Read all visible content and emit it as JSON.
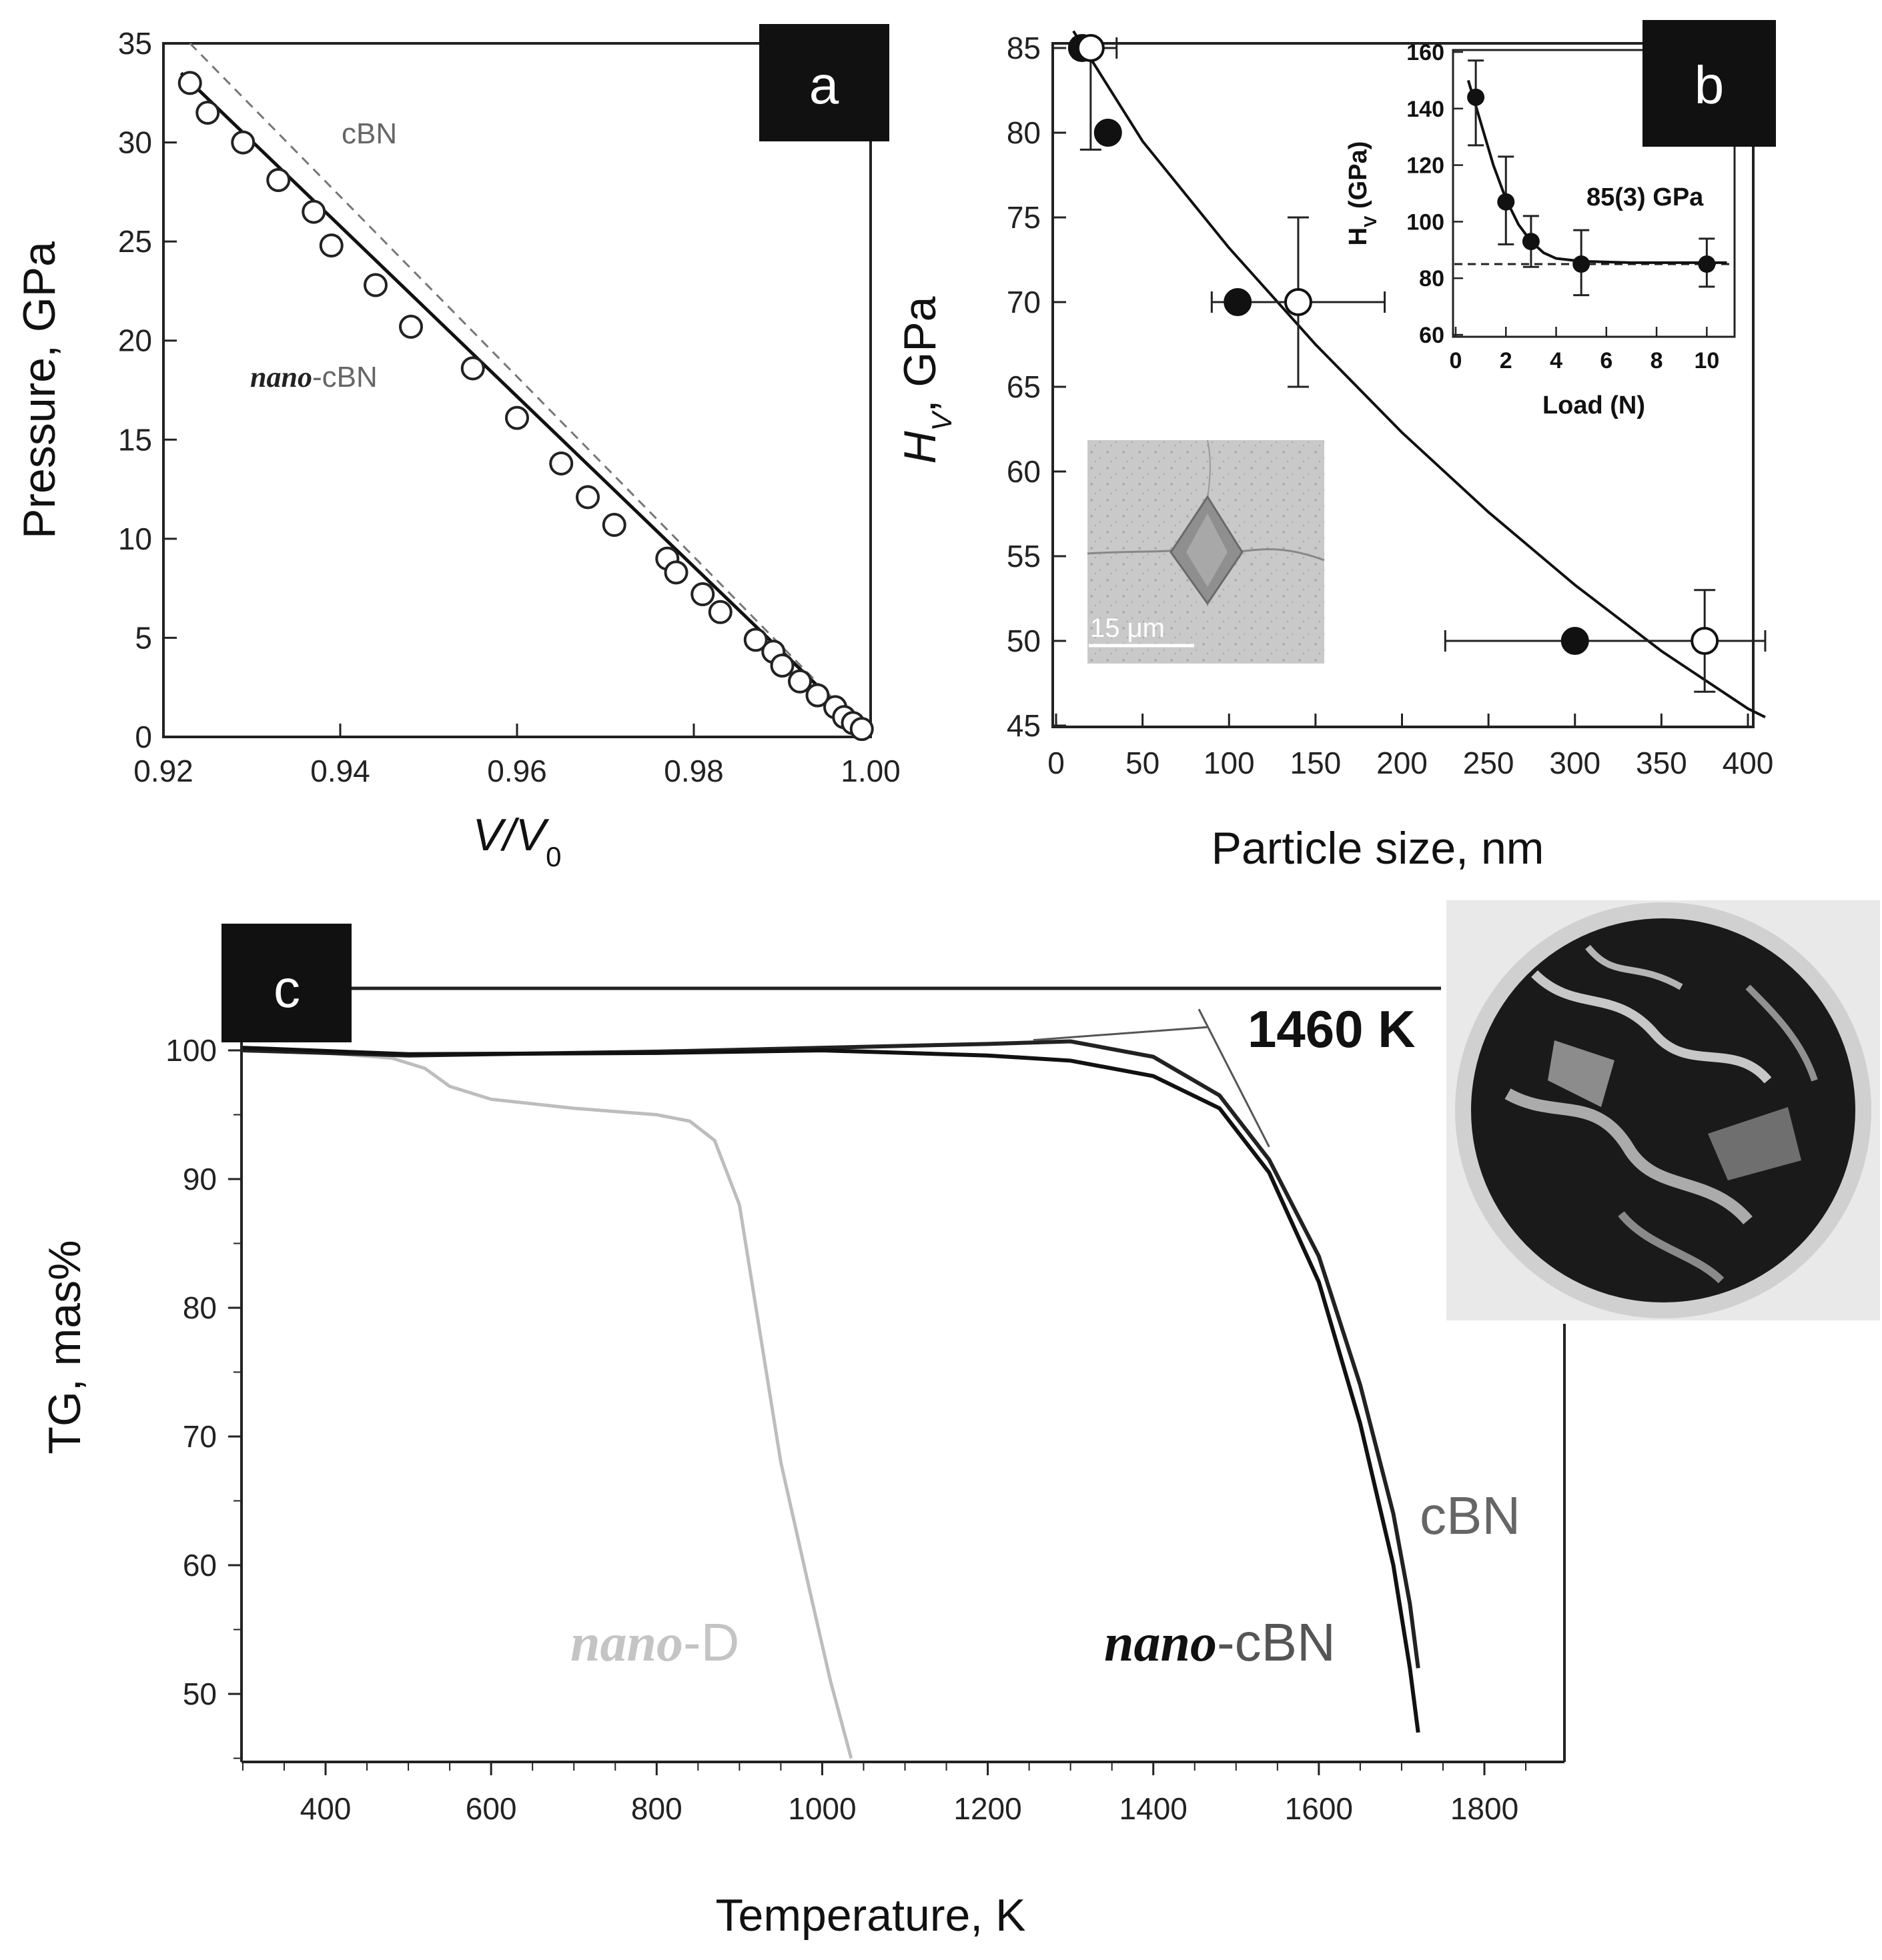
{
  "panels": {
    "a": {
      "letter": "a"
    },
    "b": {
      "letter": "b",
      "inset_scale_label": "15 μm"
    },
    "c": {
      "letter": "c"
    }
  },
  "chart_data": [
    {
      "id": "a",
      "type": "scatter",
      "xlabel": "V/V0",
      "xlabel_main": "V/V",
      "xlabel_sub": "0",
      "ylabel": "Pressure, GPa",
      "xlim": [
        0.92,
        1.0
      ],
      "ylim": [
        0,
        35
      ],
      "xticks": [
        "0.92",
        "0.94",
        "0.96",
        "0.98",
        "1.00"
      ],
      "yticks": [
        "0",
        "5",
        "10",
        "15",
        "20",
        "25",
        "30",
        "35"
      ],
      "annotations": {
        "cbn": "cBN",
        "nano_prefix": "nano",
        "nano_suffix": "-cBN"
      },
      "series": [
        {
          "name": "nano-cBN",
          "marker": "open-circle",
          "points": [
            [
              0.923,
              33.0
            ],
            [
              0.925,
              31.5
            ],
            [
              0.929,
              30.0
            ],
            [
              0.933,
              28.1
            ],
            [
              0.937,
              26.5
            ],
            [
              0.939,
              24.8
            ],
            [
              0.944,
              22.8
            ],
            [
              0.948,
              20.7
            ],
            [
              0.955,
              18.6
            ],
            [
              0.96,
              16.1
            ],
            [
              0.965,
              13.8
            ],
            [
              0.968,
              12.1
            ],
            [
              0.971,
              10.7
            ],
            [
              0.977,
              9.0
            ],
            [
              0.978,
              8.3
            ],
            [
              0.981,
              7.2
            ],
            [
              0.983,
              6.3
            ],
            [
              0.987,
              4.9
            ],
            [
              0.989,
              4.3
            ],
            [
              0.99,
              3.6
            ],
            [
              0.992,
              2.8
            ],
            [
              0.994,
              2.1
            ],
            [
              0.996,
              1.5
            ],
            [
              0.997,
              1.0
            ],
            [
              0.998,
              0.7
            ],
            [
              0.999,
              0.4
            ]
          ]
        },
        {
          "name": "nano-cBN fit",
          "type": "line",
          "points": [
            [
              0.922,
              33.5
            ],
            [
              1.0,
              0
            ]
          ]
        },
        {
          "name": "cBN",
          "type": "dashed-line",
          "points": [
            [
              0.923,
              35.0
            ],
            [
              1.0,
              0
            ]
          ]
        }
      ]
    },
    {
      "id": "b",
      "type": "scatter",
      "xlabel": "Particle size, nm",
      "ylabel_main": "H",
      "ylabel_sub": "V",
      "ylabel_rest": ", GPa",
      "xlim": [
        0,
        400
      ],
      "ylim": [
        45,
        86
      ],
      "xticks": [
        "0",
        "50",
        "100",
        "150",
        "200",
        "250",
        "300",
        "350",
        "400"
      ],
      "yticks": [
        "45",
        "50",
        "55",
        "60",
        "65",
        "70",
        "75",
        "80",
        "85"
      ],
      "series": [
        {
          "name": "filled",
          "marker": "filled-circle",
          "points": [
            {
              "x": 15,
              "y": 85
            },
            {
              "x": 30,
              "y": 80
            },
            {
              "x": 105,
              "y": 70
            },
            {
              "x": 300,
              "y": 50,
              "xerr": [
                225,
                410
              ]
            }
          ]
        },
        {
          "name": "open",
          "marker": "open-circle",
          "points": [
            {
              "x": 20,
              "y": 85,
              "xerr": [
                10,
                35
              ],
              "yerr": [
                79,
                85
              ]
            },
            {
              "x": 140,
              "y": 70,
              "xerr": [
                90,
                190
              ],
              "yerr": [
                65,
                75
              ]
            },
            {
              "x": 375,
              "y": 50,
              "yerr": [
                47,
                53
              ]
            }
          ]
        },
        {
          "name": "fit",
          "type": "line",
          "points": [
            [
              10,
              86
            ],
            [
              50,
              79.5
            ],
            [
              100,
              73.2
            ],
            [
              150,
              67.5
            ],
            [
              200,
              62.3
            ],
            [
              250,
              57.6
            ],
            [
              300,
              53.3
            ],
            [
              350,
              49.4
            ],
            [
              400,
              46.0
            ],
            [
              410,
              45.5
            ]
          ]
        }
      ],
      "inset": {
        "type": "scatter",
        "xlabel": "Load (N)",
        "ylabel_main": "H",
        "ylabel_sub": "V",
        "ylabel_rest": " (GPa)",
        "annotation": "85(3) GPa",
        "xlim": [
          0,
          11
        ],
        "ylim": [
          60,
          160
        ],
        "xticks": [
          "0",
          "2",
          "4",
          "6",
          "8",
          "10"
        ],
        "yticks": [
          "60",
          "80",
          "100",
          "120",
          "140",
          "160"
        ],
        "points": [
          {
            "x": 0.8,
            "y": 144,
            "yerr": [
              127,
              157
            ]
          },
          {
            "x": 2.0,
            "y": 107,
            "yerr": [
              92,
              123
            ]
          },
          {
            "x": 3.0,
            "y": 93,
            "yerr": [
              84,
              102
            ]
          },
          {
            "x": 5.0,
            "y": 85,
            "yerr": [
              74,
              97
            ]
          },
          {
            "x": 10.0,
            "y": 85,
            "yerr": [
              77,
              94
            ]
          }
        ],
        "fit": [
          [
            0.5,
            150
          ],
          [
            1,
            135
          ],
          [
            1.5,
            120
          ],
          [
            2,
            108
          ],
          [
            2.5,
            99
          ],
          [
            3,
            93
          ],
          [
            3.5,
            89
          ],
          [
            4,
            87
          ],
          [
            5,
            86
          ],
          [
            7,
            85.5
          ],
          [
            10.8,
            85.5
          ]
        ],
        "dashed_level": 85
      }
    },
    {
      "id": "c",
      "type": "line",
      "xlabel": "Temperature, K",
      "ylabel": "TG, mas%",
      "xlim": [
        290,
        1900
      ],
      "ylim": [
        45,
        105
      ],
      "xticks": [
        "400",
        "600",
        "800",
        "1000",
        "1200",
        "1400",
        "1600",
        "1800"
      ],
      "yticks": [
        "50",
        "60",
        "70",
        "80",
        "90",
        "100"
      ],
      "annotation": "1460 K",
      "labels": {
        "cbn": "cBN",
        "nano_cbn_prefix": "nano",
        "nano_cbn_suffix": "-cBN",
        "nano_d_prefix": "nano",
        "nano_d_suffix": "-D"
      },
      "series": [
        {
          "name": "nano-D",
          "color": "#bdbdbd",
          "points": [
            [
              300,
              100
            ],
            [
              400,
              99.8
            ],
            [
              480,
              99.4
            ],
            [
              520,
              98.6
            ],
            [
              550,
              97.2
            ],
            [
              600,
              96.2
            ],
            [
              700,
              95.5
            ],
            [
              800,
              95.0
            ],
            [
              840,
              94.5
            ],
            [
              870,
              93.0
            ],
            [
              900,
              88.0
            ],
            [
              925,
              78.0
            ],
            [
              950,
              68.0
            ],
            [
              985,
              58.0
            ],
            [
              1010,
              51.0
            ],
            [
              1035,
              45.0
            ]
          ]
        },
        {
          "name": "cBN",
          "color": "#222222",
          "points": [
            [
              300,
              100
            ],
            [
              500,
              99.6
            ],
            [
              800,
              99.9
            ],
            [
              1000,
              100.2
            ],
            [
              1200,
              100.5
            ],
            [
              1300,
              100.7
            ],
            [
              1400,
              99.5
            ],
            [
              1480,
              96.5
            ],
            [
              1540,
              91.5
            ],
            [
              1600,
              84.0
            ],
            [
              1650,
              74.0
            ],
            [
              1690,
              64.0
            ],
            [
              1710,
              57.0
            ],
            [
              1720,
              52.0
            ]
          ]
        },
        {
          "name": "nano-cBN",
          "color": "#111111",
          "points": [
            [
              300,
              100.2
            ],
            [
              500,
              99.7
            ],
            [
              800,
              99.8
            ],
            [
              1000,
              100.0
            ],
            [
              1200,
              99.6
            ],
            [
              1300,
              99.2
            ],
            [
              1400,
              98.0
            ],
            [
              1480,
              95.5
            ],
            [
              1540,
              90.5
            ],
            [
              1600,
              82.0
            ],
            [
              1650,
              71.0
            ],
            [
              1690,
              60.0
            ],
            [
              1710,
              52.0
            ],
            [
              1720,
              47.0
            ]
          ]
        },
        {
          "name": "tangent",
          "color": "#555555",
          "points": [
            [
              1455,
              103.2
            ],
            [
              1540,
              92.5
            ]
          ]
        },
        {
          "name": "pointer",
          "color": "#555555",
          "points": [
            [
              1255,
              100.8
            ],
            [
              1465,
              101.8
            ]
          ]
        }
      ]
    }
  ]
}
